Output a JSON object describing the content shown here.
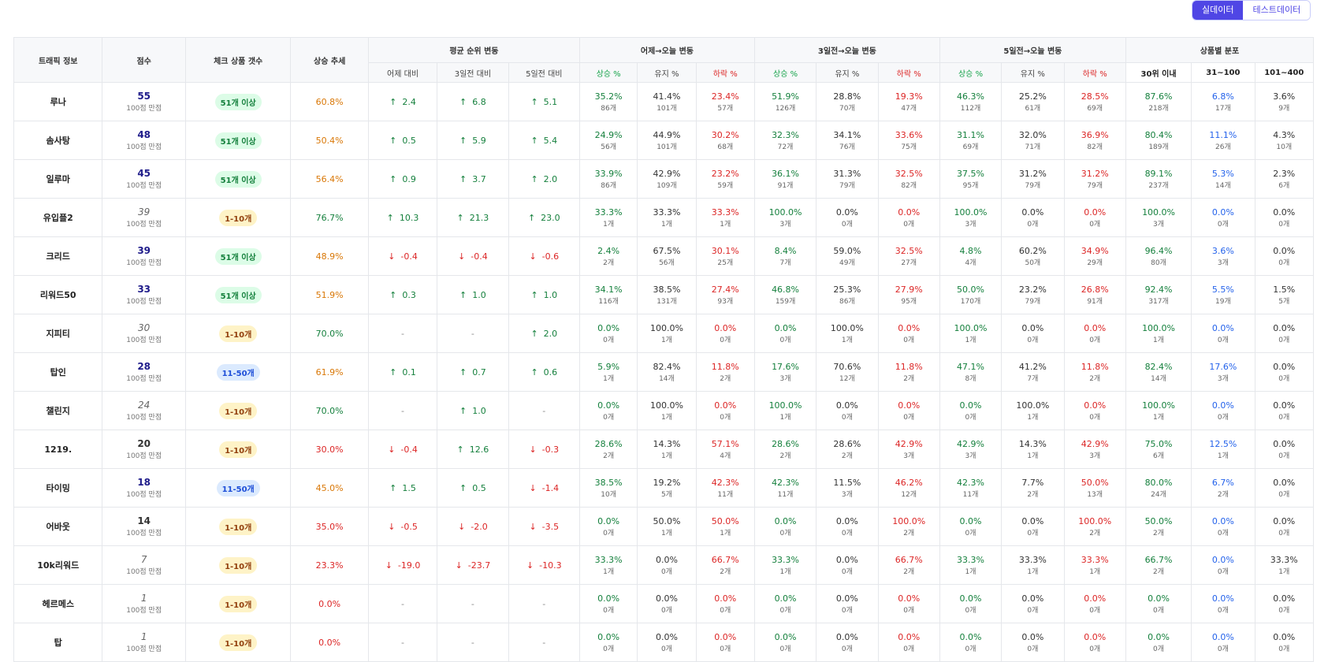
{
  "toggle": {
    "real": "실데이터",
    "test": "테스트데이터"
  },
  "header": {
    "traffic": "트래픽 정보",
    "score": "점수",
    "count": "체크 상품 갯수",
    "trend": "상승 추세",
    "avg_rank": "평균 순위 변동",
    "d1": "어제→오늘 변동",
    "d3": "3일전→오늘 변동",
    "d5": "5일전→오늘 변동",
    "dist": "상품별 분포",
    "avg_sub": [
      "어제 대비",
      "3일전 대비",
      "5일전 대비"
    ],
    "chg_sub": [
      "상승 %",
      "유지 %",
      "하락 %"
    ],
    "dist_sub": [
      "30위 이내",
      "31~100",
      "101~400"
    ]
  },
  "up_arrow": "↑",
  "down_arrow": "↓",
  "rows": [
    {
      "name": "루나",
      "score": "55",
      "scoreStyle": "hi",
      "sub": "100점 만점",
      "badge": "51개 이상",
      "badgeColor": "green",
      "trend": "60.8%",
      "trendColor": "mid",
      "avg": [
        {
          "d": "up",
          "v": "2.4"
        },
        {
          "d": "up",
          "v": "6.8"
        },
        {
          "d": "up",
          "v": "5.1"
        }
      ],
      "d1": [
        [
          "35.2%",
          "86개"
        ],
        [
          "41.4%",
          "101개"
        ],
        [
          "23.4%",
          "57개"
        ]
      ],
      "d3": [
        [
          "51.9%",
          "126개"
        ],
        [
          "28.8%",
          "70개"
        ],
        [
          "19.3%",
          "47개"
        ]
      ],
      "d5": [
        [
          "46.3%",
          "112개"
        ],
        [
          "25.2%",
          "61개"
        ],
        [
          "28.5%",
          "69개"
        ]
      ],
      "dist": [
        [
          "87.6%",
          "218개"
        ],
        [
          "6.8%",
          "17개"
        ],
        [
          "3.6%",
          "9개"
        ]
      ]
    },
    {
      "name": "솜사탕",
      "score": "48",
      "scoreStyle": "hi",
      "sub": "100점 만점",
      "badge": "51개 이상",
      "badgeColor": "green",
      "trend": "50.4%",
      "trendColor": "mid",
      "avg": [
        {
          "d": "up",
          "v": "0.5"
        },
        {
          "d": "up",
          "v": "5.9"
        },
        {
          "d": "up",
          "v": "5.4"
        }
      ],
      "d1": [
        [
          "24.9%",
          "56개"
        ],
        [
          "44.9%",
          "101개"
        ],
        [
          "30.2%",
          "68개"
        ]
      ],
      "d3": [
        [
          "32.3%",
          "72개"
        ],
        [
          "34.1%",
          "76개"
        ],
        [
          "33.6%",
          "75개"
        ]
      ],
      "d5": [
        [
          "31.1%",
          "69개"
        ],
        [
          "32.0%",
          "71개"
        ],
        [
          "36.9%",
          "82개"
        ]
      ],
      "dist": [
        [
          "80.4%",
          "189개"
        ],
        [
          "11.1%",
          "26개"
        ],
        [
          "4.3%",
          "10개"
        ]
      ]
    },
    {
      "name": "일루마",
      "score": "45",
      "scoreStyle": "hi",
      "sub": "100점 만점",
      "badge": "51개 이상",
      "badgeColor": "green",
      "trend": "56.4%",
      "trendColor": "mid",
      "avg": [
        {
          "d": "up",
          "v": "0.9"
        },
        {
          "d": "up",
          "v": "3.7"
        },
        {
          "d": "up",
          "v": "2.0"
        }
      ],
      "d1": [
        [
          "33.9%",
          "86개"
        ],
        [
          "42.9%",
          "109개"
        ],
        [
          "23.2%",
          "59개"
        ]
      ],
      "d3": [
        [
          "36.1%",
          "91개"
        ],
        [
          "31.3%",
          "79개"
        ],
        [
          "32.5%",
          "82개"
        ]
      ],
      "d5": [
        [
          "37.5%",
          "95개"
        ],
        [
          "31.2%",
          "79개"
        ],
        [
          "31.2%",
          "79개"
        ]
      ],
      "dist": [
        [
          "89.1%",
          "237개"
        ],
        [
          "5.3%",
          "14개"
        ],
        [
          "2.3%",
          "6개"
        ]
      ]
    },
    {
      "name": "유입플2",
      "score": "39",
      "scoreStyle": "low",
      "sub": "100점 만점",
      "badge": "1-10개",
      "badgeColor": "yellow",
      "trend": "76.7%",
      "trendColor": "hi",
      "avg": [
        {
          "d": "up",
          "v": "10.3"
        },
        {
          "d": "up",
          "v": "21.3"
        },
        {
          "d": "up",
          "v": "23.0"
        }
      ],
      "d1": [
        [
          "33.3%",
          "1개"
        ],
        [
          "33.3%",
          "1개"
        ],
        [
          "33.3%",
          "1개"
        ]
      ],
      "d3": [
        [
          "100.0%",
          "3개"
        ],
        [
          "0.0%",
          "0개"
        ],
        [
          "0.0%",
          "0개"
        ]
      ],
      "d5": [
        [
          "100.0%",
          "3개"
        ],
        [
          "0.0%",
          "0개"
        ],
        [
          "0.0%",
          "0개"
        ]
      ],
      "dist": [
        [
          "100.0%",
          "3개"
        ],
        [
          "0.0%",
          "0개"
        ],
        [
          "0.0%",
          "0개"
        ]
      ]
    },
    {
      "name": "크리드",
      "score": "39",
      "scoreStyle": "hi",
      "sub": "100점 만점",
      "badge": "51개 이상",
      "badgeColor": "green",
      "trend": "48.9%",
      "trendColor": "mid",
      "avg": [
        {
          "d": "down",
          "v": "-0.4"
        },
        {
          "d": "down",
          "v": "-0.4"
        },
        {
          "d": "down",
          "v": "-0.6"
        }
      ],
      "d1": [
        [
          "2.4%",
          "2개"
        ],
        [
          "67.5%",
          "56개"
        ],
        [
          "30.1%",
          "25개"
        ]
      ],
      "d3": [
        [
          "8.4%",
          "7개"
        ],
        [
          "59.0%",
          "49개"
        ],
        [
          "32.5%",
          "27개"
        ]
      ],
      "d5": [
        [
          "4.8%",
          "4개"
        ],
        [
          "60.2%",
          "50개"
        ],
        [
          "34.9%",
          "29개"
        ]
      ],
      "dist": [
        [
          "96.4%",
          "80개"
        ],
        [
          "3.6%",
          "3개"
        ],
        [
          "0.0%",
          "0개"
        ]
      ]
    },
    {
      "name": "리워드50",
      "score": "33",
      "scoreStyle": "hi",
      "sub": "100점 만점",
      "badge": "51개 이상",
      "badgeColor": "green",
      "trend": "51.9%",
      "trendColor": "mid",
      "avg": [
        {
          "d": "up",
          "v": "0.3"
        },
        {
          "d": "up",
          "v": "1.0"
        },
        {
          "d": "up",
          "v": "1.0"
        }
      ],
      "d1": [
        [
          "34.1%",
          "116개"
        ],
        [
          "38.5%",
          "131개"
        ],
        [
          "27.4%",
          "93개"
        ]
      ],
      "d3": [
        [
          "46.8%",
          "159개"
        ],
        [
          "25.3%",
          "86개"
        ],
        [
          "27.9%",
          "95개"
        ]
      ],
      "d5": [
        [
          "50.0%",
          "170개"
        ],
        [
          "23.2%",
          "79개"
        ],
        [
          "26.8%",
          "91개"
        ]
      ],
      "dist": [
        [
          "92.4%",
          "317개"
        ],
        [
          "5.5%",
          "19개"
        ],
        [
          "1.5%",
          "5개"
        ]
      ]
    },
    {
      "name": "지피티",
      "score": "30",
      "scoreStyle": "low",
      "sub": "100점 만점",
      "badge": "1-10개",
      "badgeColor": "yellow",
      "trend": "70.0%",
      "trendColor": "hi",
      "avg": [
        {
          "d": "none",
          "v": "-"
        },
        {
          "d": "none",
          "v": "-"
        },
        {
          "d": "up",
          "v": "2.0"
        }
      ],
      "d1": [
        [
          "0.0%",
          "0개"
        ],
        [
          "100.0%",
          "1개"
        ],
        [
          "0.0%",
          "0개"
        ]
      ],
      "d3": [
        [
          "0.0%",
          "0개"
        ],
        [
          "100.0%",
          "1개"
        ],
        [
          "0.0%",
          "0개"
        ]
      ],
      "d5": [
        [
          "100.0%",
          "1개"
        ],
        [
          "0.0%",
          "0개"
        ],
        [
          "0.0%",
          "0개"
        ]
      ],
      "dist": [
        [
          "100.0%",
          "1개"
        ],
        [
          "0.0%",
          "0개"
        ],
        [
          "0.0%",
          "0개"
        ]
      ]
    },
    {
      "name": "탑인",
      "score": "28",
      "scoreStyle": "hi",
      "sub": "100점 만점",
      "badge": "11-50개",
      "badgeColor": "blue",
      "trend": "61.9%",
      "trendColor": "mid",
      "avg": [
        {
          "d": "up",
          "v": "0.1"
        },
        {
          "d": "up",
          "v": "0.7"
        },
        {
          "d": "up",
          "v": "0.6"
        }
      ],
      "d1": [
        [
          "5.9%",
          "1개"
        ],
        [
          "82.4%",
          "14개"
        ],
        [
          "11.8%",
          "2개"
        ]
      ],
      "d3": [
        [
          "17.6%",
          "3개"
        ],
        [
          "70.6%",
          "12개"
        ],
        [
          "11.8%",
          "2개"
        ]
      ],
      "d5": [
        [
          "47.1%",
          "8개"
        ],
        [
          "41.2%",
          "7개"
        ],
        [
          "11.8%",
          "2개"
        ]
      ],
      "dist": [
        [
          "82.4%",
          "14개"
        ],
        [
          "17.6%",
          "3개"
        ],
        [
          "0.0%",
          "0개"
        ]
      ]
    },
    {
      "name": "챌린지",
      "score": "24",
      "scoreStyle": "low",
      "sub": "100점 만점",
      "badge": "1-10개",
      "badgeColor": "yellow",
      "trend": "70.0%",
      "trendColor": "hi",
      "avg": [
        {
          "d": "none",
          "v": "-"
        },
        {
          "d": "up",
          "v": "1.0"
        },
        {
          "d": "none",
          "v": "-"
        }
      ],
      "d1": [
        [
          "0.0%",
          "0개"
        ],
        [
          "100.0%",
          "1개"
        ],
        [
          "0.0%",
          "0개"
        ]
      ],
      "d3": [
        [
          "100.0%",
          "1개"
        ],
        [
          "0.0%",
          "0개"
        ],
        [
          "0.0%",
          "0개"
        ]
      ],
      "d5": [
        [
          "0.0%",
          "0개"
        ],
        [
          "100.0%",
          "1개"
        ],
        [
          "0.0%",
          "0개"
        ]
      ],
      "dist": [
        [
          "100.0%",
          "1개"
        ],
        [
          "0.0%",
          "0개"
        ],
        [
          "0.0%",
          "0개"
        ]
      ]
    },
    {
      "name": "1219.",
      "score": "20",
      "scoreStyle": "mid",
      "sub": "100점 만점",
      "badge": "1-10개",
      "badgeColor": "yellow",
      "trend": "30.0%",
      "trendColor": "low",
      "avg": [
        {
          "d": "down",
          "v": "-0.4"
        },
        {
          "d": "up",
          "v": "12.6"
        },
        {
          "d": "down",
          "v": "-0.3"
        }
      ],
      "d1": [
        [
          "28.6%",
          "2개"
        ],
        [
          "14.3%",
          "1개"
        ],
        [
          "57.1%",
          "4개"
        ]
      ],
      "d3": [
        [
          "28.6%",
          "2개"
        ],
        [
          "28.6%",
          "2개"
        ],
        [
          "42.9%",
          "3개"
        ]
      ],
      "d5": [
        [
          "42.9%",
          "3개"
        ],
        [
          "14.3%",
          "1개"
        ],
        [
          "42.9%",
          "3개"
        ]
      ],
      "dist": [
        [
          "75.0%",
          "6개"
        ],
        [
          "12.5%",
          "1개"
        ],
        [
          "0.0%",
          "0개"
        ]
      ]
    },
    {
      "name": "타이밍",
      "score": "18",
      "scoreStyle": "hi",
      "sub": "100점 만점",
      "badge": "11-50개",
      "badgeColor": "blue",
      "trend": "45.0%",
      "trendColor": "mid",
      "avg": [
        {
          "d": "up",
          "v": "1.5"
        },
        {
          "d": "up",
          "v": "0.5"
        },
        {
          "d": "down",
          "v": "-1.4"
        }
      ],
      "d1": [
        [
          "38.5%",
          "10개"
        ],
        [
          "19.2%",
          "5개"
        ],
        [
          "42.3%",
          "11개"
        ]
      ],
      "d3": [
        [
          "42.3%",
          "11개"
        ],
        [
          "11.5%",
          "3개"
        ],
        [
          "46.2%",
          "12개"
        ]
      ],
      "d5": [
        [
          "42.3%",
          "11개"
        ],
        [
          "7.7%",
          "2개"
        ],
        [
          "50.0%",
          "13개"
        ]
      ],
      "dist": [
        [
          "80.0%",
          "24개"
        ],
        [
          "6.7%",
          "2개"
        ],
        [
          "0.0%",
          "0개"
        ]
      ]
    },
    {
      "name": "어바웃",
      "score": "14",
      "scoreStyle": "mid",
      "sub": "100점 만점",
      "badge": "1-10개",
      "badgeColor": "yellow",
      "trend": "35.0%",
      "trendColor": "low",
      "avg": [
        {
          "d": "down",
          "v": "-0.5"
        },
        {
          "d": "down",
          "v": "-2.0"
        },
        {
          "d": "down",
          "v": "-3.5"
        }
      ],
      "d1": [
        [
          "0.0%",
          "0개"
        ],
        [
          "50.0%",
          "1개"
        ],
        [
          "50.0%",
          "1개"
        ]
      ],
      "d3": [
        [
          "0.0%",
          "0개"
        ],
        [
          "0.0%",
          "0개"
        ],
        [
          "100.0%",
          "2개"
        ]
      ],
      "d5": [
        [
          "0.0%",
          "0개"
        ],
        [
          "0.0%",
          "0개"
        ],
        [
          "100.0%",
          "2개"
        ]
      ],
      "dist": [
        [
          "50.0%",
          "2개"
        ],
        [
          "0.0%",
          "0개"
        ],
        [
          "0.0%",
          "0개"
        ]
      ]
    },
    {
      "name": "10k리워드",
      "score": "7",
      "scoreStyle": "low",
      "sub": "100점 만점",
      "badge": "1-10개",
      "badgeColor": "yellow",
      "trend": "23.3%",
      "trendColor": "low",
      "avg": [
        {
          "d": "down",
          "v": "-19.0"
        },
        {
          "d": "down",
          "v": "-23.7"
        },
        {
          "d": "down",
          "v": "-10.3"
        }
      ],
      "d1": [
        [
          "33.3%",
          "1개"
        ],
        [
          "0.0%",
          "0개"
        ],
        [
          "66.7%",
          "2개"
        ]
      ],
      "d3": [
        [
          "33.3%",
          "1개"
        ],
        [
          "0.0%",
          "0개"
        ],
        [
          "66.7%",
          "2개"
        ]
      ],
      "d5": [
        [
          "33.3%",
          "1개"
        ],
        [
          "33.3%",
          "1개"
        ],
        [
          "33.3%",
          "1개"
        ]
      ],
      "dist": [
        [
          "66.7%",
          "2개"
        ],
        [
          "0.0%",
          "0개"
        ],
        [
          "33.3%",
          "1개"
        ]
      ]
    },
    {
      "name": "헤르메스",
      "score": "1",
      "scoreStyle": "low",
      "sub": "100점 만점",
      "badge": "1-10개",
      "badgeColor": "yellow",
      "trend": "0.0%",
      "trendColor": "low",
      "avg": [
        {
          "d": "none",
          "v": "-"
        },
        {
          "d": "none",
          "v": "-"
        },
        {
          "d": "none",
          "v": "-"
        }
      ],
      "d1": [
        [
          "0.0%",
          "0개"
        ],
        [
          "0.0%",
          "0개"
        ],
        [
          "0.0%",
          "0개"
        ]
      ],
      "d3": [
        [
          "0.0%",
          "0개"
        ],
        [
          "0.0%",
          "0개"
        ],
        [
          "0.0%",
          "0개"
        ]
      ],
      "d5": [
        [
          "0.0%",
          "0개"
        ],
        [
          "0.0%",
          "0개"
        ],
        [
          "0.0%",
          "0개"
        ]
      ],
      "dist": [
        [
          "0.0%",
          "0개"
        ],
        [
          "0.0%",
          "0개"
        ],
        [
          "0.0%",
          "0개"
        ]
      ]
    },
    {
      "name": "탑",
      "score": "1",
      "scoreStyle": "low",
      "sub": "100점 만점",
      "badge": "1-10개",
      "badgeColor": "yellow",
      "trend": "0.0%",
      "trendColor": "low",
      "avg": [
        {
          "d": "none",
          "v": "-"
        },
        {
          "d": "none",
          "v": "-"
        },
        {
          "d": "none",
          "v": "-"
        }
      ],
      "d1": [
        [
          "0.0%",
          "0개"
        ],
        [
          "0.0%",
          "0개"
        ],
        [
          "0.0%",
          "0개"
        ]
      ],
      "d3": [
        [
          "0.0%",
          "0개"
        ],
        [
          "0.0%",
          "0개"
        ],
        [
          "0.0%",
          "0개"
        ]
      ],
      "d5": [
        [
          "0.0%",
          "0개"
        ],
        [
          "0.0%",
          "0개"
        ],
        [
          "0.0%",
          "0개"
        ]
      ],
      "dist": [
        [
          "0.0%",
          "0개"
        ],
        [
          "0.0%",
          "0개"
        ],
        [
          "0.0%",
          "0개"
        ]
      ]
    }
  ]
}
